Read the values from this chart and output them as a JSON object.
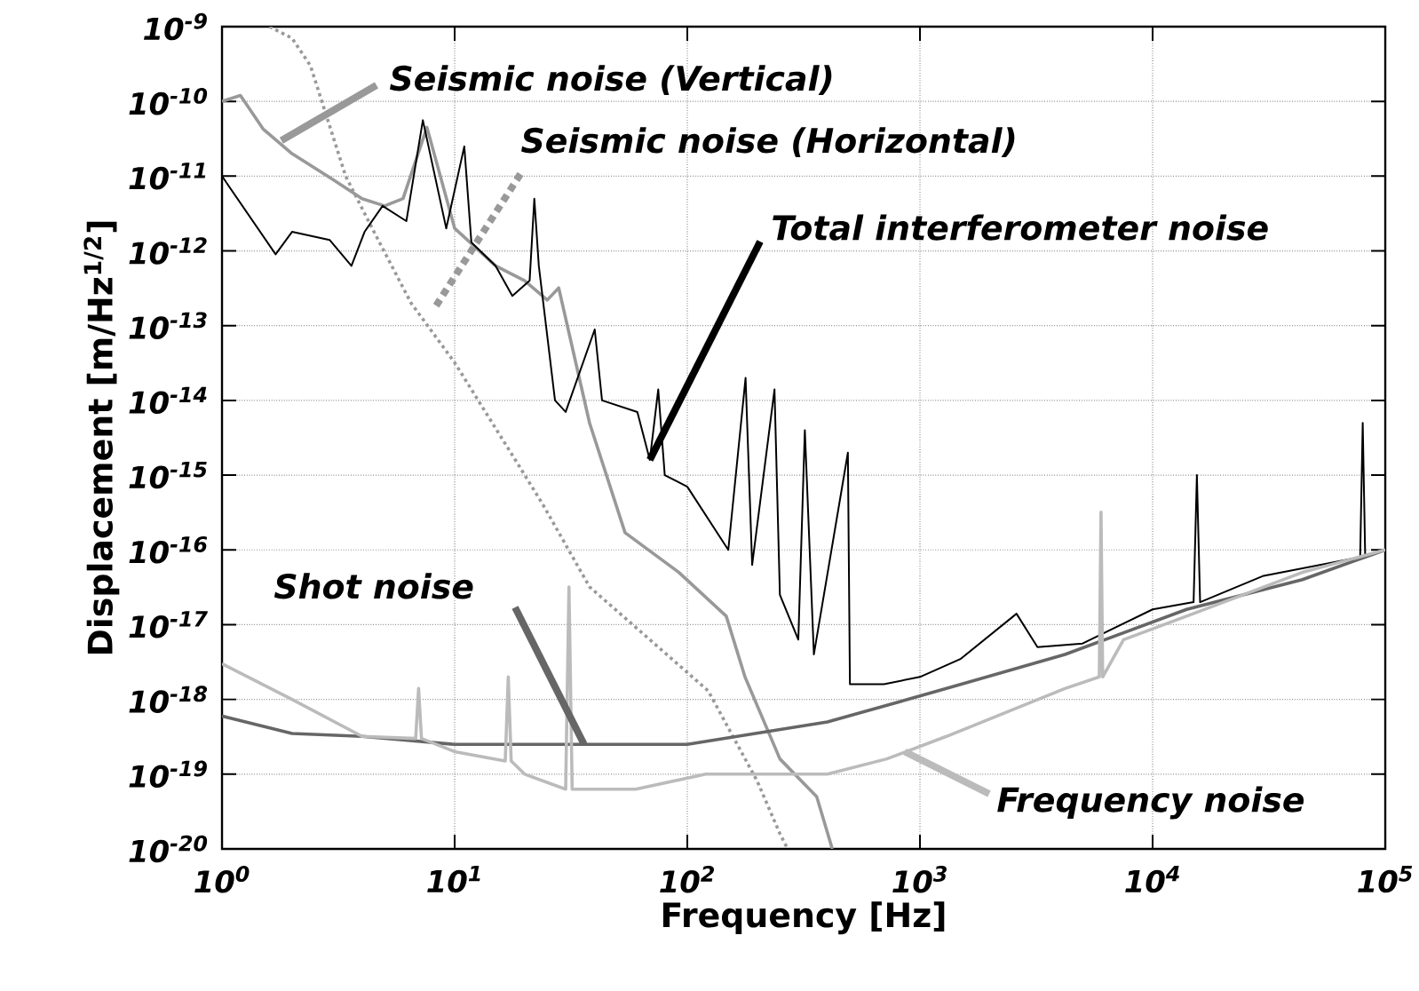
{
  "chart_data": {
    "type": "line",
    "xlabel": "Frequency [Hz]",
    "ylabel": "Displacement [m/Hz$^{1/2}$]",
    "log": "xy",
    "grid": true,
    "xlim": [
      1,
      100000
    ],
    "ylim": [
      1e-20,
      1e-09
    ],
    "xticks": [
      {
        "value": 1,
        "label": "10$^{0}$"
      },
      {
        "value": 10,
        "label": "10$^{1}$"
      },
      {
        "value": 100,
        "label": "10$^{2}$"
      },
      {
        "value": 1000,
        "label": "10$^{3}$"
      },
      {
        "value": 10000,
        "label": "10$^{4}$"
      },
      {
        "value": 100000,
        "label": "10$^{5}$"
      }
    ],
    "yticks": [
      {
        "value": 1e-20,
        "label": "10$^{-20}$"
      },
      {
        "value": 1e-19,
        "label": "10$^{-19}$"
      },
      {
        "value": 1e-18,
        "label": "10$^{-18}$"
      },
      {
        "value": 1e-17,
        "label": "10$^{-17}$"
      },
      {
        "value": 1e-16,
        "label": "10$^{-16}$"
      },
      {
        "value": 1e-15,
        "label": "10$^{-15}$"
      },
      {
        "value": 1e-14,
        "label": "10$^{-14}$"
      },
      {
        "value": 1e-13,
        "label": "10$^{-13}$"
      },
      {
        "value": 1e-12,
        "label": "10$^{-12}$"
      },
      {
        "value": 1e-11,
        "label": "10$^{-11}$"
      },
      {
        "value": 1e-10,
        "label": "10$^{-10}$"
      },
      {
        "value": 1e-09,
        "label": "10$^{-9}$"
      }
    ],
    "series": [
      {
        "color": "#999999",
        "line_style": "solid",
        "x": [
          1,
          1.2,
          1.5,
          2,
          3,
          4,
          5,
          6,
          7.6,
          10,
          15,
          20,
          25,
          28,
          38,
          54,
          92,
          147,
          177,
          250,
          360,
          420
        ],
        "values": [
          1e-10,
          1.2e-10,
          4.3e-11,
          2e-11,
          9e-12,
          5e-12,
          4e-12,
          5e-12,
          4.5e-11,
          2e-12,
          6.3e-13,
          4e-13,
          2.2e-13,
          3.2e-13,
          5e-15,
          1.7e-16,
          5e-17,
          1.3e-17,
          2e-18,
          1.6e-19,
          5e-20,
          1e-20
        ]
      },
      {
        "color": "#999999",
        "line_style": "dotted",
        "x": [
          1.6,
          2,
          2.4,
          3.4,
          4.5,
          6.5,
          10,
          19,
          24,
          38,
          69,
          123,
          200,
          250,
          270
        ],
        "values": [
          1e-09,
          7e-10,
          3e-10,
          1e-11,
          1.8e-12,
          2e-13,
          3.2e-14,
          1.3e-15,
          4e-16,
          3.2e-17,
          6.3e-18,
          1.3e-18,
          8e-20,
          1.6e-20,
          1e-20
        ]
      },
      {
        "color": "#000000",
        "line_style": "solid",
        "x": [
          1,
          1.7,
          2,
          2.9,
          3.6,
          4.1,
          4.9,
          6.2,
          7.3,
          9.2,
          11,
          11.8,
          15,
          17.7,
          21,
          22,
          23,
          27,
          30,
          40,
          43,
          61,
          69,
          75,
          80,
          100,
          150,
          178,
          190,
          237,
          250,
          300,
          320,
          350,
          490,
          500,
          700,
          1000,
          1500,
          2600,
          3200,
          5000,
          10000,
          15000,
          15500,
          16000,
          30000,
          78000,
          80000,
          82000,
          100000
        ],
        "values": [
          1e-11,
          9e-13,
          1.8e-12,
          1.4e-12,
          6.3e-13,
          1.8e-12,
          4e-12,
          2.5e-12,
          5.6e-11,
          2e-12,
          2.5e-11,
          1.3e-12,
          6.3e-13,
          2.5e-13,
          4e-13,
          5e-12,
          6.3e-13,
          1e-14,
          7e-15,
          8.9e-14,
          1e-14,
          7e-15,
          1.6e-15,
          1.4e-14,
          1e-15,
          7e-16,
          1e-16,
          2e-14,
          6.3e-17,
          1.4e-14,
          2.5e-17,
          6.3e-18,
          4e-15,
          4e-18,
          2e-15,
          1.6e-18,
          1.6e-18,
          2e-18,
          3.5e-18,
          1.4e-17,
          5e-18,
          5.6e-18,
          1.6e-17,
          2e-17,
          1e-15,
          2e-17,
          4.5e-17,
          8e-17,
          5e-15,
          8e-17,
          1e-16
        ]
      },
      {
        "color": "#666666",
        "line_style": "solid",
        "x": [
          1,
          2,
          4,
          10,
          30,
          100,
          400,
          1300,
          4200,
          14000,
          44000,
          100000
        ],
        "values": [
          6e-19,
          3.5e-19,
          3.2e-19,
          2.5e-19,
          2.5e-19,
          2.5e-19,
          5e-19,
          1.4e-18,
          4e-18,
          1.6e-17,
          4e-17,
          1e-16
        ]
      },
      {
        "color": "#bbbbbb",
        "line_style": "solid",
        "x": [
          1,
          2,
          4,
          6.8,
          7,
          7.2,
          10,
          16.5,
          17,
          17.5,
          20,
          30,
          31,
          32,
          60,
          120,
          400,
          720,
          1300,
          4200,
          5900,
          6000,
          6100,
          7500,
          14000,
          44000,
          100000
        ],
        "values": [
          3e-18,
          1e-18,
          3.2e-19,
          3e-19,
          1.4e-18,
          3e-19,
          2e-19,
          1.5e-19,
          2e-18,
          1.5e-19,
          1e-19,
          6.3e-20,
          3.2e-17,
          6.3e-20,
          6.3e-20,
          1e-19,
          1e-19,
          1.6e-19,
          3.2e-19,
          1.4e-18,
          2e-18,
          3.2e-16,
          2e-18,
          6.3e-18,
          1.3e-17,
          5e-17,
          1e-16
        ]
      }
    ],
    "annotations": [
      {
        "text": "Seismic noise (Vertical)",
        "x": 1.8,
        "y": 3e-11
      },
      "Seismic noise (Horizontal)",
      {
        "text": "Total interferometer noise",
        "x": 69,
        "y": 1.6e-15
      },
      {
        "text": "Shot noise",
        "x": 36,
        "y": 2.5e-19
      },
      {
        "text": "Frequency noise",
        "x": 860,
        "y": 2e-19
      }
    ]
  }
}
